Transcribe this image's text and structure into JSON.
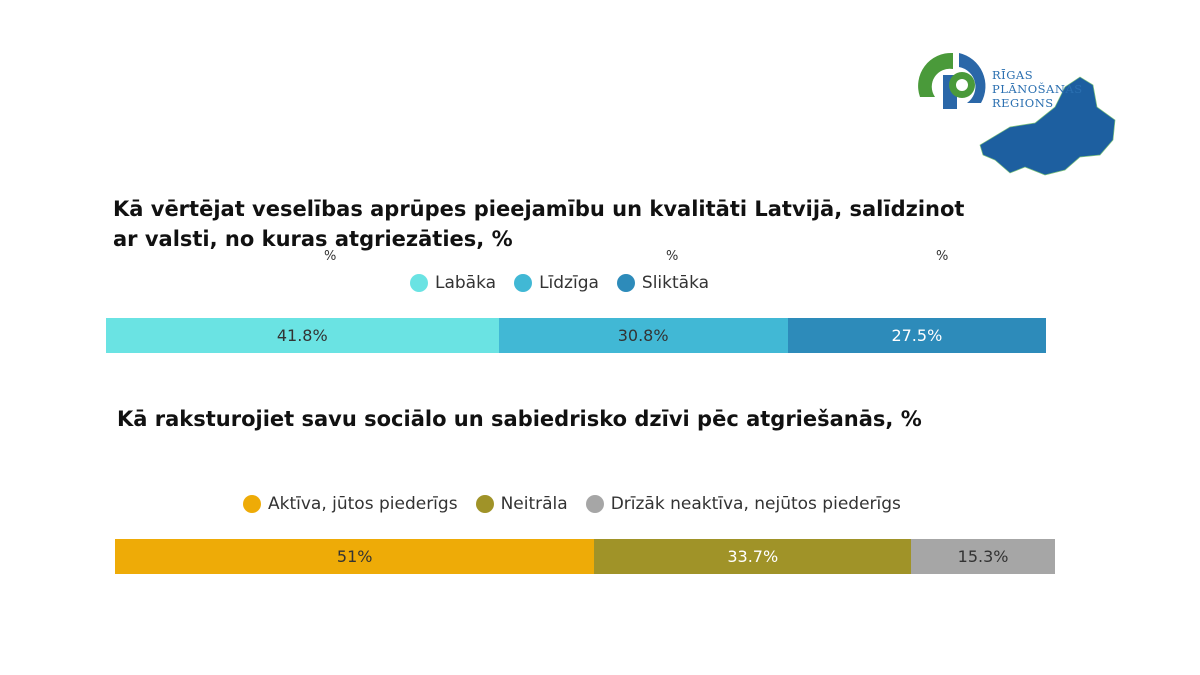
{
  "logo": {
    "lines": [
      "RĪGAS",
      "PLĀNOŠANAS",
      "REGIONS"
    ]
  },
  "chart_data": [
    {
      "type": "bar",
      "stacked": true,
      "orientation": "horizontal",
      "title": "Kā vērtējat veselības aprūpes pieejamību un kvalitāti Latvijā, salīdzinot ar valsti, no kuras atgriezāties, %",
      "unit_labels": [
        "%",
        "%",
        "%"
      ],
      "legend_placement": "top",
      "series": [
        {
          "name": "Labāka",
          "value": 41.8,
          "label": "41.8%",
          "color": "#6ae3e3",
          "text_color": "#333333"
        },
        {
          "name": "Līdzīga",
          "value": 30.8,
          "label": "30.8%",
          "color": "#41b8d5",
          "text_color": "#333333"
        },
        {
          "name": "Sliktāka",
          "value": 27.5,
          "label": "27.5%",
          "color": "#2d8bba",
          "text_color": "#ffffff"
        }
      ]
    },
    {
      "type": "bar",
      "stacked": true,
      "orientation": "horizontal",
      "title": "Kā raksturojiet savu sociālo un sabiedrisko dzīvi pēc atgriešanās, %",
      "legend_placement": "top",
      "series": [
        {
          "name": "Aktīva, jūtos piederīgs",
          "value": 51,
          "label": "51%",
          "color": "#eeab07",
          "text_color": "#333333"
        },
        {
          "name": "Neitrāla",
          "value": 33.7,
          "label": "33.7%",
          "color": "#a09328",
          "text_color": "#ffffff"
        },
        {
          "name": "Drīzāk neaktīva, nejūtos piederīgs",
          "value": 15.3,
          "label": "15.3%",
          "color": "#a6a6a6",
          "text_color": "#333333"
        }
      ]
    }
  ]
}
